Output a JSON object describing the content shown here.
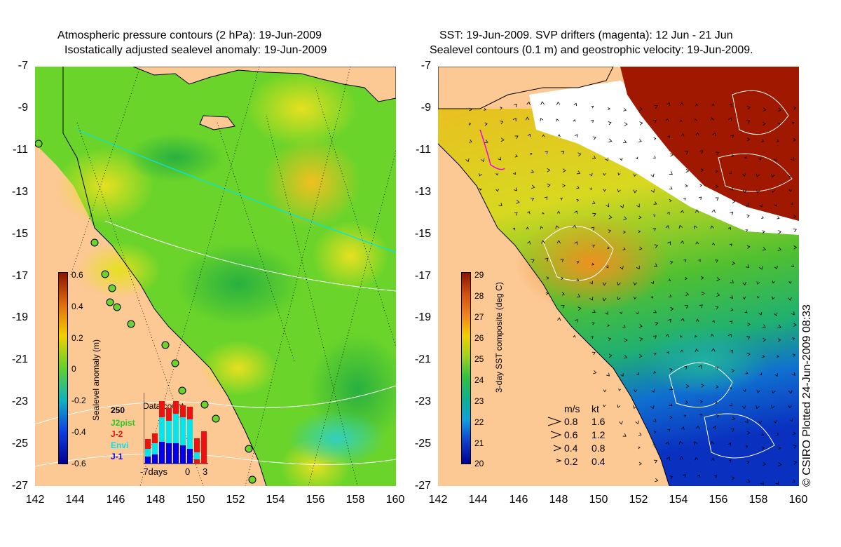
{
  "left_panel": {
    "title_line1": "Atmospheric pressure contours (2 hPa): 19-Jun-2009",
    "title_line2": "Isostatically adjusted sealevel anomaly: 19-Jun-2009",
    "colorbar": {
      "label": "Sealevel anomaly (m)",
      "ticks": [
        "0.6",
        "0.4",
        "0.2",
        "0",
        "-0.2",
        "-0.4",
        "-0.6"
      ],
      "range": [
        -0.6,
        0.6
      ]
    },
    "data_count": {
      "title": "Data count",
      "max_label": "250",
      "series": [
        "J2pist",
        "J-2",
        "Envi",
        "J-1"
      ],
      "series_colors": [
        "#22cc22",
        "#ee1111",
        "#00e5ee",
        "#0000ee"
      ],
      "x_labels": [
        "-7days",
        "0",
        "3"
      ]
    }
  },
  "right_panel": {
    "title_line1": "SST: 19-Jun-2009. SVP drifters (magenta): 12 Jun - 21 Jun",
    "title_line2": "Sealevel contours (0.1 m) and geostrophic velocity: 19-Jun-2009.",
    "colorbar": {
      "label": "3-day SST composite (deg C)",
      "ticks": [
        "29",
        "28",
        "27",
        "26",
        "25",
        "24",
        "23",
        "22",
        "21",
        "20"
      ],
      "range": [
        20,
        29
      ]
    },
    "velocity_legend": {
      "header_ms": "m/s",
      "header_kt": "kt",
      "rows": [
        {
          "ms": "0.8",
          "kt": "1.6"
        },
        {
          "ms": "0.6",
          "kt": "1.2"
        },
        {
          "ms": "0.4",
          "kt": "0.8"
        },
        {
          "ms": "0.2",
          "kt": "0.4"
        }
      ]
    },
    "credit": "© CSIRO Plotted 24-Jun-2009 08:33"
  },
  "axes": {
    "lat_ticks": [
      "-7",
      "-9",
      "-11",
      "-13",
      "-15",
      "-17",
      "-19",
      "-21",
      "-23",
      "-25",
      "-27"
    ],
    "lon_ticks": [
      "142",
      "144",
      "146",
      "148",
      "150",
      "152",
      "154",
      "156",
      "158",
      "160"
    ],
    "lat_range": [
      -27,
      -7
    ],
    "lon_range": [
      142,
      160
    ]
  },
  "colors": {
    "land": "#fcc894",
    "sla_green": "#6ad42a",
    "sst_orange": "#e8a020",
    "sst_darkred": "#a01800",
    "sst_blue": "#0a3cc8"
  }
}
